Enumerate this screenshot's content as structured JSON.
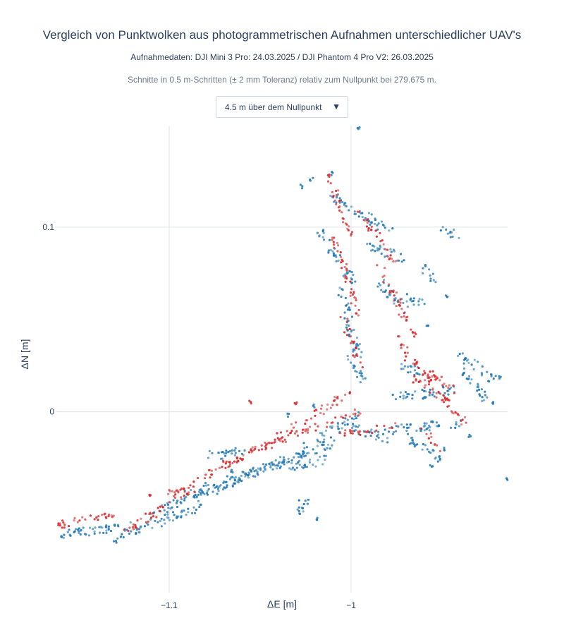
{
  "header": {
    "title": "Vergleich von Punktwolken aus photogrammetrischen Aufnahmen unterschiedlicher UAV's",
    "subtitle": "Aufnahmedaten: DJI Mini 3 Pro: 24.03.2025 / DJI Phantom 4 Pro V2: 26.03.2025",
    "note": "Schnitte in 0.5 m-Schritten (± 2 mm Toleranz) relativ zum Nullpunkt bei 279.675 m."
  },
  "dropdown": {
    "selected": "4.5 m über dem Nullpunkt",
    "caret_icon": "caret-down-icon"
  },
  "chart_data": {
    "type": "scatter",
    "xlabel": "ΔE [m]",
    "ylabel": "ΔN [m]",
    "xlim": [
      -1.162,
      -0.914
    ],
    "ylim": [
      -0.098,
      0.155
    ],
    "x_ticks": [
      {
        "value": -1.1,
        "label": "−1.1"
      },
      {
        "value": -1.0,
        "label": "−1"
      }
    ],
    "y_ticks": [
      {
        "value": 0.1,
        "label": "0.1"
      },
      {
        "value": 0,
        "label": "0"
      }
    ],
    "grid": true,
    "series": [
      {
        "color": "#1f77b4",
        "segments": [
          [
            -1.16,
            -0.067,
            -1.12,
            -0.061
          ],
          [
            -1.128,
            -0.068,
            -1.083,
            -0.051
          ],
          [
            -1.11,
            -0.055,
            -1.06,
            -0.037
          ],
          [
            -1.09,
            -0.045,
            -1.035,
            -0.027
          ],
          [
            -1.06,
            -0.035,
            -1.01,
            -0.017
          ],
          [
            -1.03,
            -0.023,
            -0.996,
            -0.002
          ],
          [
            -1.08,
            -0.024,
            -1.06,
            -0.022
          ],
          [
            -1.035,
            -0.03,
            -1.012,
            -0.026
          ],
          [
            -1.03,
            -0.058,
            -1.025,
            -0.047
          ],
          [
            -1.0,
            -0.008,
            -0.98,
            -0.015
          ],
          [
            -0.98,
            -0.01,
            -0.94,
            -0.006
          ],
          [
            -0.97,
            -0.013,
            -0.95,
            -0.025
          ],
          [
            -0.975,
            0.008,
            -0.94,
            0.012
          ],
          [
            -0.975,
            0.025,
            -0.962,
            0.022
          ],
          [
            -0.94,
            0.03,
            -0.922,
            0.018
          ],
          [
            -0.94,
            0.022,
            -0.925,
            0.005
          ],
          [
            -1.018,
            0.098,
            -0.999,
            0.07
          ],
          [
            -1.006,
            0.065,
            -0.996,
            0.03
          ],
          [
            -1.0,
            0.028,
            -0.992,
            0.015
          ],
          [
            -1.012,
            0.118,
            -0.994,
            0.105
          ],
          [
            -0.996,
            0.108,
            -0.978,
            0.098
          ],
          [
            -0.99,
            0.09,
            -0.97,
            0.082
          ],
          [
            -0.985,
            0.07,
            -0.97,
            0.055
          ],
          [
            -0.96,
            0.078,
            -0.955,
            0.07
          ],
          [
            -0.95,
            0.1,
            -0.942,
            0.095
          ],
          [
            -0.97,
            0.062,
            -0.96,
            0.058
          ]
        ],
        "points": [
          [
            -1.011,
            0.129
          ],
          [
            -1.027,
            0.122
          ],
          [
            -1.022,
            0.126
          ],
          [
            -0.996,
            0.153
          ],
          [
            -1.065,
            -0.032
          ],
          [
            -1.018,
            -0.058
          ],
          [
            -1.13,
            -0.07
          ],
          [
            -1.16,
            -0.068
          ],
          [
            -0.915,
            -0.037
          ],
          [
            -0.918,
            0.019
          ],
          [
            -0.922,
            0.005
          ],
          [
            -0.937,
            0.028
          ],
          [
            -1.035,
            -0.002
          ],
          [
            -1.02,
            0.003
          ],
          [
            -0.956,
            -0.03
          ],
          [
            -0.948,
            -0.02
          ],
          [
            -0.958,
            0.047
          ],
          [
            -0.948,
            0.062
          ],
          [
            -0.935,
            -0.013
          ],
          [
            -0.965,
            -0.018
          ]
        ]
      },
      {
        "color": "#d62728",
        "segments": [
          [
            -1.16,
            -0.061,
            -1.13,
            -0.056
          ],
          [
            -1.125,
            -0.065,
            -1.087,
            -0.042
          ],
          [
            -1.1,
            -0.045,
            -1.05,
            -0.019
          ],
          [
            -1.07,
            -0.029,
            -1.032,
            -0.012
          ],
          [
            -1.05,
            -0.02,
            -1.005,
            0.008
          ],
          [
            -1.03,
            -0.012,
            -0.995,
            0.0
          ],
          [
            -1.012,
            0.126,
            -1.0,
            0.095
          ],
          [
            -1.01,
            0.095,
            -0.995,
            0.05
          ],
          [
            -1.004,
            0.05,
            -0.995,
            0.025
          ],
          [
            -0.995,
            0.108,
            -0.975,
            0.08
          ],
          [
            -0.985,
            0.08,
            -0.965,
            0.04
          ],
          [
            -0.975,
            0.04,
            -0.955,
            0.015
          ],
          [
            -0.965,
            0.018,
            -0.945,
            0.005
          ],
          [
            -0.97,
            0.03,
            -0.942,
            0.01
          ],
          [
            -0.955,
            0.012,
            -0.935,
            -0.008
          ],
          [
            -0.96,
            -0.01,
            -0.952,
            -0.02
          ],
          [
            -1.005,
            -0.012,
            -0.975,
            -0.008
          ]
        ],
        "points": [
          [
            -1.16,
            -0.061
          ],
          [
            -1.158,
            -0.062
          ],
          [
            -1.11,
            -0.045
          ],
          [
            -1.077,
            -0.035
          ],
          [
            -1.055,
            0.005
          ],
          [
            -1.03,
            0.005
          ],
          [
            -1.013,
            0.128
          ],
          [
            -1.0,
            0.01
          ]
        ]
      }
    ]
  }
}
